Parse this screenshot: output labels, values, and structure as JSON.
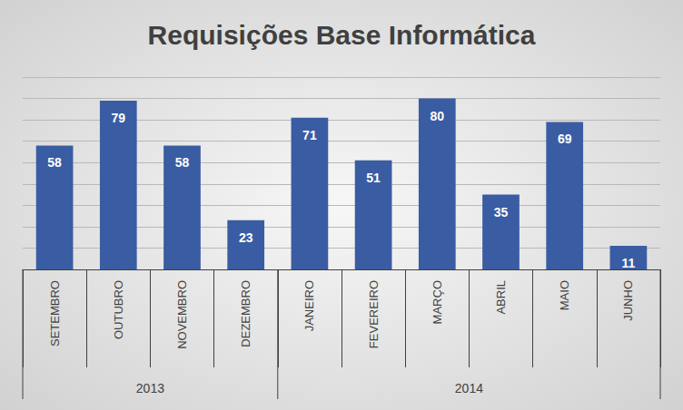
{
  "chart_data": {
    "type": "bar",
    "title": "Requisições Base Informática",
    "categories": [
      "SETEMBRO",
      "OUTUBRO",
      "NOVEMBRO",
      "DEZEMBRO",
      "JANEIRO",
      "FEVEREIRO",
      "MARÇO",
      "ABRIL",
      "MAIO",
      "JUNHO"
    ],
    "category_groups": [
      "2013",
      "2013",
      "2013",
      "2013",
      "2014",
      "2014",
      "2014",
      "2014",
      "2014",
      "2014"
    ],
    "values": [
      58,
      79,
      58,
      23,
      71,
      51,
      80,
      35,
      69,
      11
    ],
    "color": "#3a5ca3",
    "ylim": [
      0,
      90
    ],
    "yticks": [
      0,
      10,
      20,
      30,
      40,
      50,
      60,
      70,
      80,
      90
    ],
    "grid": true,
    "data_labels": true,
    "tick_labels": "x"
  }
}
